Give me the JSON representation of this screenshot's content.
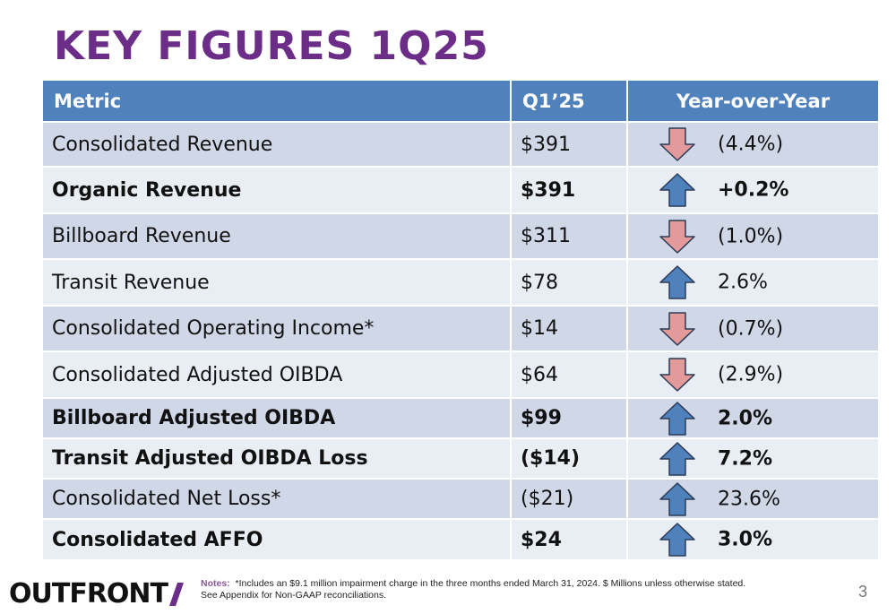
{
  "title": "KEY FIGURES 1Q25",
  "table": {
    "headers": {
      "metric": "Metric",
      "q1": "Q1’25",
      "yoy": "Year-over-Year"
    },
    "rows": [
      {
        "metric": "Consolidated Revenue",
        "q1": "$391",
        "direction": "down",
        "yoy": "(4.4%)",
        "bold": false
      },
      {
        "metric": "Organic Revenue",
        "q1": "$391",
        "direction": "up",
        "yoy": "+0.2%",
        "bold": true
      },
      {
        "metric": "Billboard Revenue",
        "q1": "$311",
        "direction": "down",
        "yoy": "(1.0%)",
        "bold": false
      },
      {
        "metric": "Transit Revenue",
        "q1": "$78",
        "direction": "up",
        "yoy": "2.6%",
        "bold": false
      },
      {
        "metric": "Consolidated Operating Income*",
        "q1": "$14",
        "direction": "down",
        "yoy": "(0.7%)",
        "bold": false
      },
      {
        "metric": "Consolidated Adjusted OIBDA",
        "q1": "$64",
        "direction": "down",
        "yoy": "(2.9%)",
        "bold": false
      },
      {
        "metric": "Billboard Adjusted OIBDA",
        "q1": "$99",
        "direction": "up",
        "yoy": "2.0%",
        "bold": true
      },
      {
        "metric": "Transit Adjusted OIBDA Loss",
        "q1": "($14)",
        "direction": "up",
        "yoy": "7.2%",
        "bold": true
      },
      {
        "metric": "Consolidated Net Loss*",
        "q1": "($21)",
        "direction": "up",
        "yoy": "23.6%",
        "bold": false
      },
      {
        "metric": "Consolidated AFFO",
        "q1": "$24",
        "direction": "up",
        "yoy": "3.0%",
        "bold": true
      }
    ]
  },
  "colors": {
    "title": "#6b2d87",
    "header_bg": "#4f81bd",
    "up_arrow": "#4f81bd",
    "down_arrow": "#e39a9a",
    "logo_slash": "#6b2d87"
  },
  "icons": {
    "up": "arrow-up-icon",
    "down": "arrow-down-icon"
  },
  "footer": {
    "logo": "OUTFRONT",
    "notes_label": "Notes:",
    "notes_line1": "*Includes an $9.1 million impairment charge in the three months ended March 31, 2024. $ Millions unless otherwise stated.",
    "notes_line2": "See Appendix for Non-GAAP reconciliations.",
    "page_number": "3"
  }
}
